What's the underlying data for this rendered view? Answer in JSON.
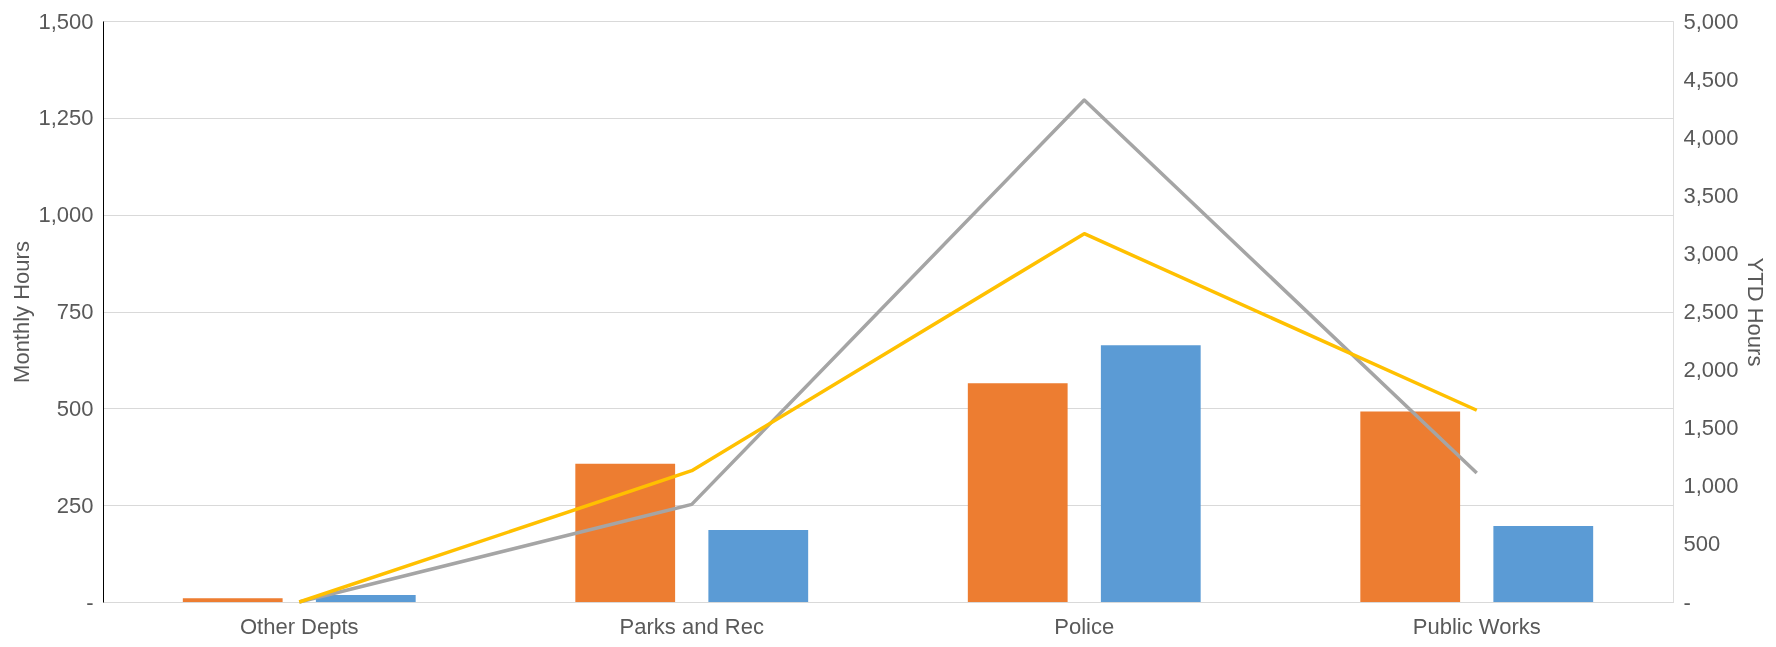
{
  "chart_data": {
    "type": "bar",
    "ylabel": "Monthly Hours",
    "y2label": "YTD Hours",
    "categories": [
      "Other Depts",
      "Parks and Rec",
      "Police",
      "Public Works"
    ],
    "series": [
      {
        "color": "#ed7d31",
        "values": [
          10,
          357,
          565,
          492
        ]
      },
      {
        "color": "#5b9bd5",
        "values": [
          18,
          186,
          663,
          196
        ]
      },
      {
        "type": "line",
        "axis": "y2",
        "color": "#a5a5a5",
        "values": [
          0,
          840,
          4320,
          1110
        ]
      },
      {
        "type": "line",
        "axis": "y2",
        "color": "#ffc000",
        "values": [
          0,
          1130,
          3170,
          1650
        ]
      }
    ],
    "ylim": [
      0,
      1500
    ],
    "yticks": [
      {
        "value": 0,
        "label": "-"
      },
      250,
      500,
      750,
      {
        "value": 1000,
        "label": "1,000"
      },
      {
        "value": 1250,
        "label": "1,250"
      },
      {
        "value": 1500,
        "label": "1,500"
      }
    ],
    "y2lim": [
      0,
      5000
    ],
    "y2ticks": [
      {
        "value": 0,
        "label": "-"
      },
      500,
      {
        "value": 1000,
        "label": "1,000"
      },
      {
        "value": 1500,
        "label": "1,500"
      },
      {
        "value": 2000,
        "label": "2,000"
      },
      {
        "value": 2500,
        "label": "2,500"
      },
      {
        "value": 3000,
        "label": "3,000"
      },
      {
        "value": 3500,
        "label": "3,500"
      },
      {
        "value": 4000,
        "label": "4,000"
      },
      {
        "value": 4500,
        "label": "4,500"
      },
      {
        "value": 5000,
        "label": "5,000"
      }
    ],
    "grid": "y",
    "legend": false,
    "line_style": "solid",
    "marker": "none"
  }
}
